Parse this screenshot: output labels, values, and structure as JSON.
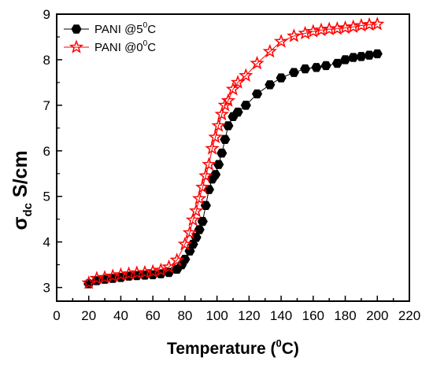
{
  "chart_data": {
    "type": "line",
    "xlabel": "Temperature (",
    "xlabel_sup": "0",
    "xlabel_end": "C)",
    "ylabel_sigma": "σ",
    "ylabel_sub": "dc",
    "ylabel_unit": " S/cm",
    "xlim": [
      0,
      220
    ],
    "ylim": [
      2.7,
      9
    ],
    "x_ticks": [
      0,
      10,
      20,
      30,
      40,
      50,
      60,
      70,
      80,
      90,
      100,
      110,
      120,
      130,
      140,
      150,
      160,
      170,
      180,
      190,
      200,
      210,
      220
    ],
    "x_tick_labels": [
      "0",
      "20",
      "40",
      "60",
      "80",
      "100",
      "120",
      "140",
      "160",
      "180",
      "200",
      "220"
    ],
    "x_tick_label_values": [
      0,
      20,
      40,
      60,
      80,
      100,
      120,
      140,
      160,
      180,
      200,
      220
    ],
    "y_ticks": [
      3,
      4,
      5,
      6,
      7,
      8,
      9
    ],
    "y_tick_labels": [
      "3",
      "4",
      "5",
      "6",
      "7",
      "8",
      "9"
    ],
    "legend_position": "top-left",
    "series": [
      {
        "legend_name": "PANI @5",
        "legend_sup": "0",
        "legend_end": "C",
        "marker": "hexagon",
        "color": "#000000",
        "x": [
          20,
          25,
          30,
          35,
          40,
          45,
          50,
          55,
          60,
          65,
          70,
          75,
          78,
          80,
          83,
          85,
          87,
          89,
          91,
          93,
          95,
          97,
          99,
          101,
          103,
          105,
          107,
          110,
          113,
          118,
          125,
          133,
          140,
          148,
          155,
          162,
          168,
          175,
          180,
          185,
          190,
          195,
          200
        ],
        "y": [
          3.08,
          3.15,
          3.18,
          3.2,
          3.22,
          3.25,
          3.26,
          3.27,
          3.28,
          3.3,
          3.33,
          3.4,
          3.5,
          3.62,
          3.8,
          3.95,
          4.1,
          4.27,
          4.45,
          4.8,
          5.15,
          5.38,
          5.48,
          5.7,
          5.95,
          6.25,
          6.55,
          6.75,
          6.85,
          7.0,
          7.25,
          7.45,
          7.6,
          7.72,
          7.8,
          7.83,
          7.87,
          7.92,
          8.0,
          8.05,
          8.07,
          8.1,
          8.13
        ]
      },
      {
        "legend_name": "PANI @0",
        "legend_sup": "0",
        "legend_end": "C",
        "marker": "star",
        "color": "#ff0000",
        "x": [
          20,
          25,
          30,
          35,
          40,
          45,
          50,
          55,
          60,
          65,
          70,
          75,
          80,
          83,
          85,
          87,
          89,
          91,
          93,
          95,
          97,
          99,
          101,
          103,
          105,
          107,
          110,
          113,
          118,
          125,
          133,
          140,
          148,
          155,
          160,
          165,
          170,
          175,
          180,
          185,
          190,
          195,
          200
        ],
        "y": [
          3.1,
          3.2,
          3.22,
          3.25,
          3.28,
          3.3,
          3.32,
          3.33,
          3.35,
          3.38,
          3.45,
          3.6,
          3.95,
          4.2,
          4.48,
          4.68,
          4.95,
          5.2,
          5.45,
          5.7,
          6.05,
          6.3,
          6.55,
          6.8,
          7.0,
          7.1,
          7.35,
          7.5,
          7.65,
          7.92,
          8.18,
          8.4,
          8.52,
          8.58,
          8.62,
          8.65,
          8.67,
          8.68,
          8.7,
          8.72,
          8.75,
          8.77,
          8.78
        ]
      }
    ]
  }
}
